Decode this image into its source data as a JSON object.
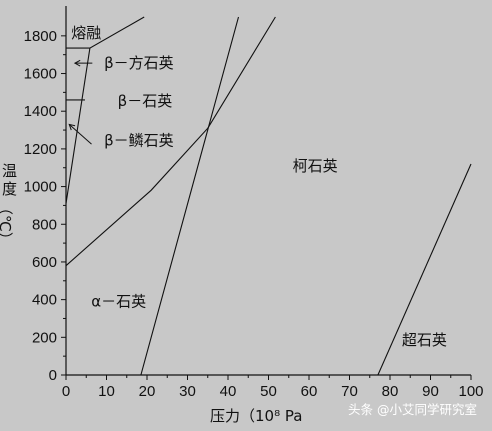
{
  "chart_data": {
    "type": "line",
    "title": "",
    "xlabel": "压力（10⁸ Pa",
    "ylabel": "温度（℃）",
    "xlim": [
      0,
      100
    ],
    "ylim": [
      0,
      1900
    ],
    "xticks": [
      0,
      10,
      20,
      30,
      40,
      50,
      60,
      70,
      80,
      90,
      100
    ],
    "yticks": [
      0,
      200,
      400,
      600,
      800,
      1000,
      1200,
      1400,
      1600,
      1800
    ],
    "grid": false,
    "boundaries": [
      {
        "x": [
          0,
          5.9,
          19.3
        ],
        "y": [
          1735,
          1735,
          1900
        ]
      },
      {
        "x": [
          0,
          5.9
        ],
        "y": [
          910,
          1735
        ]
      },
      {
        "x": [
          0,
          4.7
        ],
        "y": [
          1460,
          1460
        ]
      },
      {
        "x": [
          0,
          21,
          35,
          51.7
        ],
        "y": [
          580,
          980,
          1310,
          1900
        ]
      },
      {
        "x": [
          18.5,
          35.1,
          42.6
        ],
        "y": [
          0,
          1310,
          1900
        ]
      },
      {
        "x": [
          77,
          100
        ],
        "y": [
          0,
          1120
        ]
      }
    ],
    "regions": [
      {
        "label": "熔融",
        "x": 5,
        "y": 1815
      },
      {
        "label": "β－方石英",
        "x": 18,
        "y": 1655
      },
      {
        "label": "β－石英",
        "x": 19.5,
        "y": 1455
      },
      {
        "label": "β－鳞石英",
        "x": 18,
        "y": 1245
      },
      {
        "label": "柯石英",
        "x": 61.5,
        "y": 1110
      },
      {
        "label": "α－石英",
        "x": 13,
        "y": 390
      },
      {
        "label": "超石英",
        "x": 88.5,
        "y": 185
      }
    ],
    "arrows": [
      {
        "label_ref": "β－方石英",
        "from": [
          6.5,
          1655
        ],
        "to": [
          2.2,
          1655
        ]
      },
      {
        "label_ref": "β－鳞石英",
        "from": [
          6.3,
          1225
        ],
        "to": [
          0.8,
          1330
        ]
      }
    ]
  },
  "watermark": "头条 @小艾同学研究室",
  "colors": {
    "background": "#c8c8c8",
    "line": "#111111",
    "watermark": "#ffffff"
  }
}
